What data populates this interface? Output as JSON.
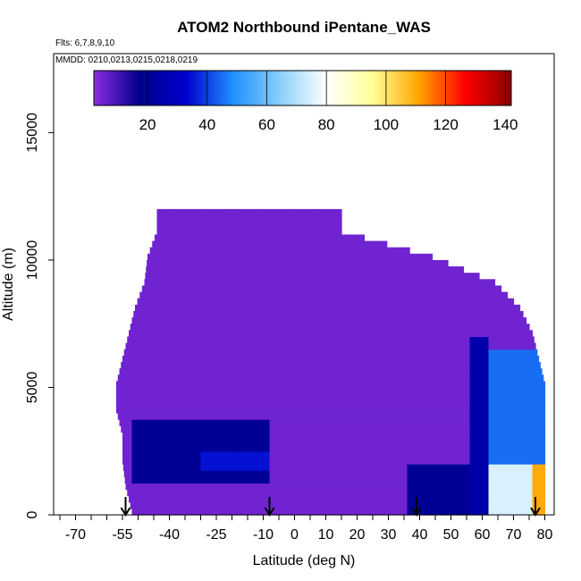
{
  "chart_data": {
    "type": "heatmap",
    "title": "ATOM2 Northbound iPentane_WAS",
    "flights_label": "Flts: 6,7,8,9,10",
    "dates_label": "MMDD: 0210,0213,0215,0218,0219",
    "xlabel": "Latitude (deg N)",
    "ylabel": "Altitude (m)",
    "x_ticks": [
      "-70",
      "-55",
      "-40",
      "-25",
      "-10",
      "0",
      "10",
      "20",
      "30",
      "40",
      "50",
      "60",
      "70",
      "80"
    ],
    "x_tick_values": [
      -70,
      -55,
      -40,
      -25,
      -10,
      0,
      10,
      20,
      30,
      40,
      50,
      60,
      70,
      80
    ],
    "y_ticks": [
      "0",
      "5000",
      "10000",
      "15000"
    ],
    "y_tick_values": [
      0,
      5000,
      10000,
      15000
    ],
    "colorbar": {
      "ticks": [
        "20",
        "40",
        "60",
        "80",
        "100",
        "120",
        "140"
      ],
      "tick_values": [
        20,
        40,
        60,
        80,
        100,
        120,
        140
      ],
      "range": [
        2,
        142
      ],
      "colors": [
        "#8b2be2",
        "#00008b",
        "#0000cd",
        "#1e90ff",
        "#87cefa",
        "#ffffff",
        "#ffff99",
        "#ffa500",
        "#ff0000",
        "#8b0000"
      ]
    },
    "arrows_at_latitude": [
      -54,
      -8,
      39,
      77
    ],
    "profile": {
      "altitude_levels_m": [
        0,
        1000,
        2000,
        3000,
        4000,
        5000,
        6000,
        7000,
        8000,
        9000,
        10000,
        11000,
        12000
      ],
      "latitude_ranges": [
        {
          "alt": 0,
          "lat_min": -52,
          "lat_max": 80
        },
        {
          "alt": 1000,
          "lat_min": -54,
          "lat_max": 80
        },
        {
          "alt": 2000,
          "lat_min": -55,
          "lat_max": 80
        },
        {
          "alt": 3000,
          "lat_min": -55,
          "lat_max": 80
        },
        {
          "alt": 4000,
          "lat_min": -57,
          "lat_max": 80
        },
        {
          "alt": 5000,
          "lat_min": -57,
          "lat_max": 80
        },
        {
          "alt": 6000,
          "lat_min": -55,
          "lat_max": 78
        },
        {
          "alt": 7000,
          "lat_min": -53,
          "lat_max": 76
        },
        {
          "alt": 8000,
          "lat_min": -51,
          "lat_max": 72
        },
        {
          "alt": 9000,
          "lat_min": -48,
          "lat_max": 64
        },
        {
          "alt": 10000,
          "lat_min": -47,
          "lat_max": 44
        },
        {
          "alt": 11000,
          "lat_min": -44,
          "lat_max": 15
        }
      ],
      "background_value": 5,
      "enhanced_regions": [
        {
          "lat_min": -53,
          "lat_max": -8,
          "alt_min": 1200,
          "alt_max": 3800,
          "value": 20
        },
        {
          "lat_min": -30,
          "lat_max": -8,
          "alt_min": 1800,
          "alt_max": 2500,
          "value": 35
        },
        {
          "lat_min": 35,
          "lat_max": 55,
          "alt_min": 0,
          "alt_max": 2000,
          "value": 20
        },
        {
          "lat_min": 55,
          "lat_max": 62,
          "alt_min": 0,
          "alt_max": 7000,
          "value": 25
        },
        {
          "lat_min": 62,
          "lat_max": 80,
          "alt_min": 2000,
          "alt_max": 6500,
          "value": 45
        },
        {
          "lat_min": 62,
          "lat_max": 76,
          "alt_min": 0,
          "alt_max": 2000,
          "value": 75
        },
        {
          "lat_min": 76,
          "lat_max": 80,
          "alt_min": 0,
          "alt_max": 2000,
          "value": 110
        }
      ]
    }
  }
}
